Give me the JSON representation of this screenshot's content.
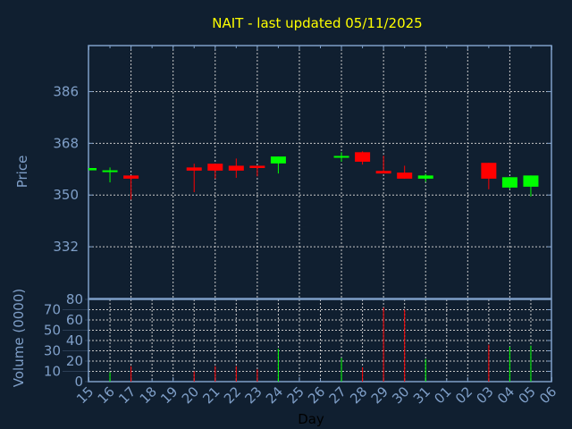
{
  "chart_data": {
    "type": "candlestick",
    "title": "NAIT - last updated 05/11/2025",
    "xlabel": "Day",
    "ylabel": "Price",
    "volume_label": "Volume (0000)",
    "categories": [
      "15",
      "16",
      "17",
      "18",
      "19",
      "20",
      "21",
      "22",
      "23",
      "24",
      "25",
      "26",
      "27",
      "28",
      "29",
      "30",
      "31",
      "01",
      "02",
      "03",
      "04",
      "05",
      "06"
    ],
    "price_ticks": [
      332,
      350,
      368,
      386
    ],
    "price_ylim": [
      314,
      402
    ],
    "volume_ticks": [
      0,
      10,
      20,
      30,
      40,
      50,
      60,
      70,
      80
    ],
    "volume_ylim": [
      0,
      80
    ],
    "grid": true,
    "candles": [
      {
        "day": "15",
        "open": 358.6,
        "high": 359.4,
        "low": 358.6,
        "close": 359.4,
        "volume": 0
      },
      {
        "day": "16",
        "open": 358.2,
        "high": 359.6,
        "low": 354.4,
        "close": 358.6,
        "volume": 9
      },
      {
        "day": "17",
        "open": 356.8,
        "high": 356.8,
        "low": 348.4,
        "close": 355.7,
        "volume": 15
      },
      {
        "day": "20",
        "open": 359.6,
        "high": 360.9,
        "low": 351.0,
        "close": 358.5,
        "volume": 10
      },
      {
        "day": "21",
        "open": 360.9,
        "high": 360.9,
        "low": 355.7,
        "close": 358.5,
        "volume": 15
      },
      {
        "day": "22",
        "open": 360.2,
        "high": 362.7,
        "low": 356.0,
        "close": 358.5,
        "volume": 15
      },
      {
        "day": "23",
        "open": 360.2,
        "high": 360.2,
        "low": 356.5,
        "close": 359.4,
        "volume": 12
      },
      {
        "day": "24",
        "open": 361.0,
        "high": 363.4,
        "low": 357.5,
        "close": 363.4,
        "volume": 32
      },
      {
        "day": "27",
        "open": 363.1,
        "high": 364.9,
        "low": 361.6,
        "close": 363.6,
        "volume": 23
      },
      {
        "day": "28",
        "open": 364.9,
        "high": 365.2,
        "low": 360.6,
        "close": 361.6,
        "volume": 14
      },
      {
        "day": "29",
        "open": 358.4,
        "high": 363.7,
        "low": 357.5,
        "close": 357.5,
        "volume": 72
      },
      {
        "day": "30",
        "open": 357.8,
        "high": 360.2,
        "low": 355.7,
        "close": 355.7,
        "volume": 70
      },
      {
        "day": "31",
        "open": 355.7,
        "high": 357.4,
        "low": 354.6,
        "close": 356.8,
        "volume": 22
      },
      {
        "day": "03",
        "open": 361.2,
        "high": 361.2,
        "low": 352.0,
        "close": 355.7,
        "volume": 36
      },
      {
        "day": "04",
        "open": 352.6,
        "high": 356.2,
        "low": 352.0,
        "close": 356.2,
        "volume": 34
      },
      {
        "day": "05",
        "open": 352.9,
        "high": 356.8,
        "low": 349.5,
        "close": 356.8,
        "volume": 35
      }
    ],
    "colors": {
      "up": "#00ff00",
      "down": "#ff0000",
      "background": "#101f30",
      "axis": "#7f9fc8",
      "grid": "#c8c8c8",
      "title": "#ffff00"
    }
  }
}
